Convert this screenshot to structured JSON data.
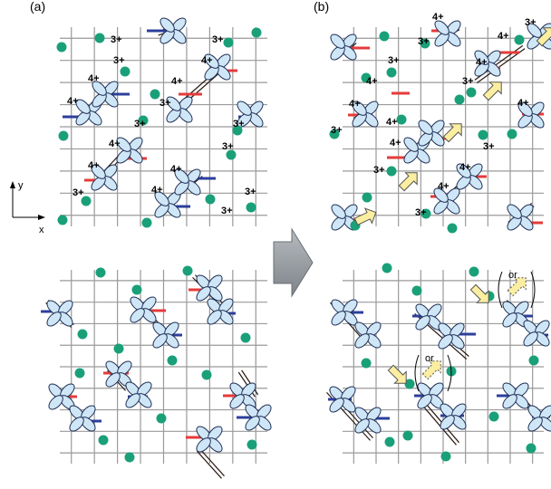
{
  "panel_labels": [
    "(a)",
    "(b)"
  ],
  "axis_labels": {
    "y": "y",
    "x": "x"
  },
  "ion_labels": {
    "four_plus": "4+",
    "three_plus": "3+"
  },
  "or_label": "or",
  "colors": {
    "grid": "#9a9a9a",
    "ion_dot": "#1aa079",
    "orbital_fill": "#cfe6f7",
    "orbital_stroke": "#1f2f55",
    "bond_red": "#e53b3b",
    "bond_blue": "#2c3f9c",
    "chain": "#2a1a14",
    "arrow_fill": "#fbeea0",
    "arrow_stroke": "#555555",
    "big_arrow": "#8f949a"
  }
}
